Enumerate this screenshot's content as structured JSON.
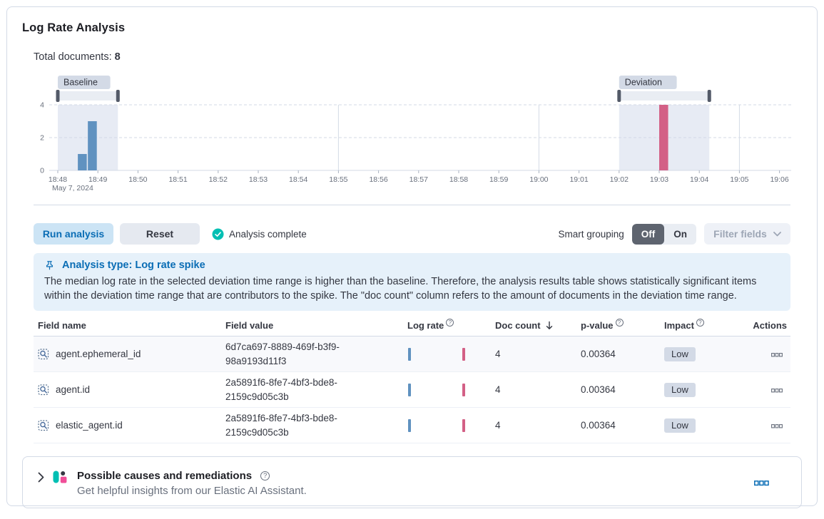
{
  "header": {
    "title": "Log Rate Analysis",
    "total_documents_label": "Total documents:",
    "total_documents_value": "8"
  },
  "chart_data": {
    "type": "bar",
    "x_tick_labels": [
      "18:48",
      "18:49",
      "18:50",
      "18:51",
      "18:52",
      "18:53",
      "18:54",
      "18:55",
      "18:56",
      "18:57",
      "18:58",
      "18:59",
      "19:00",
      "19:01",
      "19:02",
      "19:03",
      "19:04",
      "19:05",
      "19:06"
    ],
    "x_axis_date_label": "May 7, 2024",
    "y_ticks": [
      0,
      2,
      4
    ],
    "ylim": [
      0,
      4
    ],
    "grid": true,
    "vertical_gridlines_at": [
      "18:55",
      "19:00",
      "19:05"
    ],
    "bucket_minutes": 0.25,
    "baseline": {
      "label": "Baseline",
      "range": [
        "18:48:00",
        "18:49:30"
      ]
    },
    "deviation": {
      "label": "Deviation",
      "range": [
        "19:02:00",
        "19:04:15"
      ]
    },
    "bars": [
      {
        "time": "18:48:30",
        "count": 1,
        "series": "baseline"
      },
      {
        "time": "18:48:45",
        "count": 3,
        "series": "baseline"
      },
      {
        "time": "19:03:00",
        "count": 4,
        "series": "deviation"
      }
    ],
    "colors": {
      "baseline_bar": "#6092C0",
      "deviation_bar": "#D36086",
      "range_fill": "#E7EBF4",
      "brush_track": "#E9EDF3",
      "brush_handle": "#535A68",
      "badge_bg": "#D3DAE6",
      "badge_text": "#343741",
      "gridline": "#D3DAE6",
      "axis_text": "#69707D"
    }
  },
  "controls": {
    "run_button": "Run analysis",
    "reset_button": "Reset",
    "status_text": "Analysis complete",
    "smart_grouping_label": "Smart grouping",
    "smart_grouping_off": "Off",
    "smart_grouping_on": "On",
    "filter_fields_button": "Filter fields"
  },
  "callout": {
    "title": "Analysis type: Log rate spike",
    "body": "The median log rate in the selected deviation time range is higher than the baseline. Therefore, the analysis results table shows statistically significant items within the deviation time range that are contributors to the spike. The \"doc count\" column refers to the amount of documents in the deviation time range."
  },
  "table": {
    "columns": [
      {
        "label": "Field name"
      },
      {
        "label": "Field value"
      },
      {
        "label": "Log rate",
        "help": true
      },
      {
        "label": "Doc count",
        "sorted": "desc"
      },
      {
        "label": "p-value",
        "help": true
      },
      {
        "label": "Impact",
        "help": true
      },
      {
        "label": "Actions"
      }
    ],
    "rows": [
      {
        "field_name": "agent.ephemeral_id",
        "field_value": "6d7ca697-8889-469f-b3f9-98a9193d11f3",
        "doc_count": "4",
        "p_value": "0.00364",
        "impact": "Low"
      },
      {
        "field_name": "agent.id",
        "field_value": "2a5891f6-8fe7-4bf3-bde8-2159c9d05c3b",
        "doc_count": "4",
        "p_value": "0.00364",
        "impact": "Low"
      },
      {
        "field_name": "elastic_agent.id",
        "field_value": "2a5891f6-8fe7-4bf3-bde8-2159c9d05c3b",
        "doc_count": "4",
        "p_value": "0.00364",
        "impact": "Low"
      }
    ]
  },
  "footer": {
    "title": "Possible causes and remediations",
    "subtitle": "Get helpful insights from our Elastic AI Assistant."
  }
}
